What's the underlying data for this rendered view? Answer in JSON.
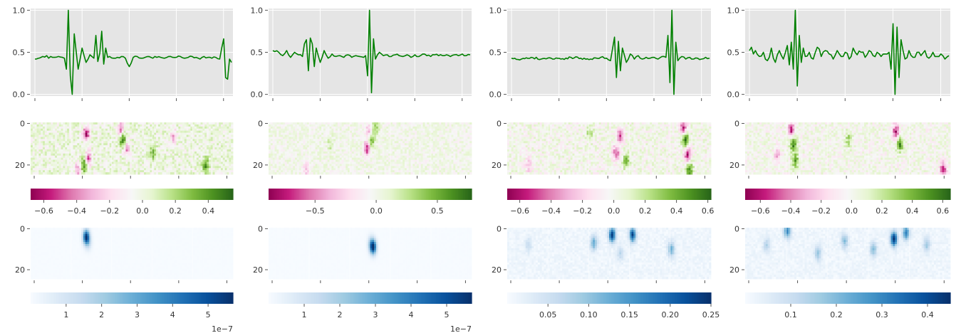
{
  "figure": {
    "line_color": "#008000",
    "plot_bg": "#e5e5e5",
    "grid_color": "#ffffff",
    "diverging_colormap": "PiYG",
    "sequential_colormap": "Blues"
  },
  "chart_data": [
    {
      "type": "line",
      "column": 0,
      "ylim": [
        -0.02,
        1.02
      ],
      "yticks": [
        "0.0",
        "0.5",
        "1.0"
      ],
      "x": [
        0,
        4,
        6,
        7,
        8,
        9,
        10,
        12,
        14,
        15,
        16,
        17,
        18,
        19,
        20,
        22,
        24,
        26,
        28,
        29,
        30,
        31,
        32,
        33,
        34,
        35,
        36,
        37,
        38,
        40,
        42,
        44,
        46,
        48,
        50,
        52,
        54,
        56,
        58,
        59,
        60,
        61,
        62,
        64,
        66,
        68,
        70,
        72,
        74,
        76,
        78,
        80,
        82,
        84,
        86,
        88,
        90,
        92,
        94,
        95,
        96,
        97,
        98,
        99,
        100
      ],
      "y": [
        0.42,
        0.45,
        0.46,
        0.43,
        0.45,
        0.44,
        0.44,
        0.45,
        0.44,
        0.43,
        0.3,
        1.0,
        0.22,
        0.0,
        0.72,
        0.3,
        0.55,
        0.38,
        0.47,
        0.45,
        0.43,
        0.7,
        0.39,
        0.49,
        0.75,
        0.36,
        0.55,
        0.44,
        0.45,
        0.43,
        0.44,
        0.45,
        0.43,
        0.33,
        0.44,
        0.45,
        0.43,
        0.44,
        0.45,
        0.44,
        0.43,
        0.45,
        0.44,
        0.44,
        0.43,
        0.45,
        0.44,
        0.44,
        0.45,
        0.43,
        0.44,
        0.45,
        0.44,
        0.42,
        0.45,
        0.44,
        0.43,
        0.44,
        0.42,
        0.55,
        0.66,
        0.2,
        0.18,
        0.42,
        0.38
      ]
    },
    {
      "type": "heatmap",
      "column": 0,
      "rows": 25,
      "yticks": [
        "0",
        "20"
      ],
      "colormap": "PiYG",
      "colorbar_range": [
        -0.68,
        0.55
      ],
      "colorbar_ticks": [
        "−0.6",
        "−0.4",
        "−0.2",
        "0.0",
        "0.2",
        "0.4"
      ],
      "features": [
        [
          27,
          5,
          -0.6
        ],
        [
          28,
          17,
          -0.5
        ],
        [
          26,
          20,
          0.5
        ],
        [
          44,
          3,
          -0.45
        ],
        [
          45,
          8,
          0.5
        ],
        [
          47,
          12,
          -0.4
        ],
        [
          60,
          14,
          0.35
        ],
        [
          86,
          20,
          0.45
        ],
        [
          23,
          22,
          -0.35
        ],
        [
          70,
          6,
          -0.3
        ]
      ]
    },
    {
      "type": "heatmap",
      "column": 0,
      "rows": 25,
      "yticks": [
        "0",
        "20"
      ],
      "colormap": "Blues",
      "colorbar_range": [
        0,
        5.7
      ],
      "colorbar_ticks": [
        "1",
        "2",
        "3",
        "4",
        "5"
      ],
      "colorbar_scale": "1e−7",
      "features": [
        [
          27,
          4,
          5.5
        ],
        [
          28,
          7,
          1.2
        ]
      ]
    },
    {
      "type": "line",
      "column": 1,
      "ylim": [
        -0.02,
        1.02
      ],
      "yticks": [
        "0.0",
        "0.5",
        "1.0"
      ],
      "x": [
        0,
        3,
        5,
        7,
        9,
        11,
        13,
        15,
        16,
        17,
        18,
        19,
        20,
        21,
        22,
        24,
        26,
        28,
        30,
        32,
        34,
        36,
        38,
        40,
        42,
        44,
        46,
        47,
        48,
        49,
        50,
        51,
        52,
        54,
        56,
        58,
        60,
        62,
        64,
        66,
        68,
        70,
        72,
        74,
        76,
        78,
        80,
        82,
        84,
        86,
        88,
        90,
        92,
        94,
        96,
        98,
        100
      ],
      "y": [
        0.52,
        0.5,
        0.46,
        0.52,
        0.44,
        0.5,
        0.47,
        0.45,
        0.6,
        0.65,
        0.28,
        0.67,
        0.6,
        0.33,
        0.55,
        0.38,
        0.52,
        0.43,
        0.48,
        0.45,
        0.46,
        0.44,
        0.47,
        0.44,
        0.46,
        0.45,
        0.44,
        0.46,
        0.22,
        1.0,
        0.02,
        0.66,
        0.42,
        0.5,
        0.46,
        0.47,
        0.45,
        0.47,
        0.46,
        0.45,
        0.47,
        0.44,
        0.47,
        0.45,
        0.48,
        0.46,
        0.45,
        0.47,
        0.46,
        0.46,
        0.47,
        0.45,
        0.47,
        0.46,
        0.48,
        0.46,
        0.47
      ]
    },
    {
      "type": "heatmap",
      "column": 1,
      "rows": 25,
      "yticks": [
        "0",
        "20"
      ],
      "colormap": "PiYG",
      "colorbar_range": [
        -0.88,
        0.78
      ],
      "colorbar_ticks": [
        "−0.5",
        "0.0",
        "0.5"
      ],
      "features": [
        [
          49,
          4,
          -0.45
        ],
        [
          48,
          12,
          -0.75
        ],
        [
          50,
          8,
          0.55
        ],
        [
          52,
          2,
          0.4
        ],
        [
          18,
          22,
          -0.3
        ],
        [
          30,
          10,
          0.2
        ]
      ]
    },
    {
      "type": "heatmap",
      "column": 1,
      "rows": 25,
      "yticks": [
        "0",
        "20"
      ],
      "colormap": "Blues",
      "colorbar_range": [
        0,
        5.7
      ],
      "colorbar_ticks": [
        "1",
        "2",
        "3",
        "4",
        "5"
      ],
      "colorbar_scale": "1e−7",
      "features": [
        [
          51,
          9,
          5.5
        ],
        [
          50,
          7,
          1.5
        ]
      ]
    },
    {
      "type": "line",
      "column": 2,
      "ylim": [
        -0.02,
        1.02
      ],
      "yticks": [
        "0.0",
        "0.5",
        "1.0"
      ],
      "x": [
        0,
        5,
        10,
        15,
        20,
        25,
        30,
        35,
        40,
        45,
        48,
        50,
        51,
        52,
        53,
        54,
        55,
        56,
        58,
        60,
        62,
        64,
        66,
        68,
        70,
        72,
        74,
        76,
        78,
        79,
        80,
        81,
        82,
        83,
        84,
        86,
        88,
        90,
        92,
        94,
        96,
        98,
        100
      ],
      "y": [
        0.43,
        0.42,
        0.44,
        0.42,
        0.43,
        0.42,
        0.44,
        0.43,
        0.42,
        0.44,
        0.43,
        0.4,
        0.54,
        0.68,
        0.2,
        0.63,
        0.28,
        0.55,
        0.38,
        0.48,
        0.42,
        0.46,
        0.42,
        0.44,
        0.43,
        0.44,
        0.42,
        0.45,
        0.44,
        0.7,
        0.14,
        1.0,
        0.0,
        0.62,
        0.4,
        0.45,
        0.42,
        0.44,
        0.42,
        0.43,
        0.42,
        0.44,
        0.43
      ]
    },
    {
      "type": "heatmap",
      "column": 2,
      "rows": 25,
      "yticks": [
        "0",
        "20"
      ],
      "colormap": "PiYG",
      "colorbar_range": [
        -0.68,
        0.62
      ],
      "colorbar_ticks": [
        "−0.6",
        "−0.4",
        "−0.2",
        "0.0",
        "0.2",
        "0.4",
        "0.6"
      ],
      "features": [
        [
          55,
          6,
          -0.5
        ],
        [
          53,
          14,
          -0.45
        ],
        [
          58,
          18,
          0.4
        ],
        [
          86,
          2,
          -0.55
        ],
        [
          87,
          8,
          0.6
        ],
        [
          88,
          15,
          -0.6
        ],
        [
          89,
          22,
          0.5
        ],
        [
          10,
          20,
          -0.3
        ],
        [
          40,
          5,
          0.25
        ]
      ]
    },
    {
      "type": "heatmap",
      "column": 2,
      "rows": 25,
      "yticks": [
        "0",
        "20"
      ],
      "colormap": "Blues",
      "colorbar_range": [
        0,
        0.25
      ],
      "colorbar_ticks": [
        "0.05",
        "0.10",
        "0.15",
        "0.20",
        "0.25"
      ],
      "features": [
        [
          51,
          3,
          0.23
        ],
        [
          61,
          3,
          0.22
        ],
        [
          42,
          7,
          0.12
        ],
        [
          80,
          10,
          0.12
        ],
        [
          55,
          12,
          0.06
        ],
        [
          10,
          8,
          0.05
        ]
      ]
    },
    {
      "type": "line",
      "column": 3,
      "ylim": [
        -0.02,
        1.02
      ],
      "yticks": [
        "0.0",
        "0.5",
        "1.0"
      ],
      "x": [
        0,
        1,
        2,
        3,
        5,
        7,
        9,
        11,
        13,
        15,
        17,
        19,
        20,
        21,
        22,
        23,
        24,
        25,
        26,
        27,
        28,
        30,
        32,
        34,
        36,
        38,
        40,
        42,
        44,
        46,
        48,
        50,
        52,
        54,
        56,
        58,
        60,
        62,
        64,
        66,
        68,
        70,
        71,
        72,
        73,
        74,
        75,
        76,
        78,
        80,
        82,
        84,
        86,
        88,
        90,
        92,
        94,
        96,
        98,
        100
      ],
      "y": [
        0.52,
        0.56,
        0.48,
        0.52,
        0.45,
        0.5,
        0.4,
        0.55,
        0.38,
        0.52,
        0.42,
        0.58,
        0.35,
        0.62,
        0.3,
        1.0,
        0.1,
        0.7,
        0.38,
        0.55,
        0.45,
        0.5,
        0.42,
        0.56,
        0.45,
        0.52,
        0.48,
        0.42,
        0.52,
        0.45,
        0.5,
        0.42,
        0.55,
        0.47,
        0.5,
        0.44,
        0.52,
        0.46,
        0.5,
        0.45,
        0.48,
        0.5,
        0.3,
        0.84,
        0.0,
        0.8,
        0.2,
        0.65,
        0.42,
        0.52,
        0.44,
        0.5,
        0.46,
        0.52,
        0.43,
        0.5,
        0.45,
        0.48,
        0.42,
        0.46
      ]
    },
    {
      "type": "heatmap",
      "column": 3,
      "rows": 25,
      "yticks": [
        "0",
        "20"
      ],
      "colormap": "PiYG",
      "colorbar_range": [
        -0.7,
        0.65
      ],
      "colorbar_ticks": [
        "−0.6",
        "−0.4",
        "−0.2",
        "0.0",
        "0.2",
        "0.4",
        "0.6"
      ],
      "features": [
        [
          22,
          3,
          -0.6
        ],
        [
          23,
          10,
          0.55
        ],
        [
          24,
          18,
          0.45
        ],
        [
          73,
          4,
          -0.6
        ],
        [
          75,
          10,
          0.5
        ],
        [
          96,
          22,
          -0.55
        ],
        [
          50,
          8,
          0.3
        ],
        [
          15,
          15,
          -0.3
        ]
      ]
    },
    {
      "type": "heatmap",
      "column": 3,
      "rows": 25,
      "yticks": [
        "0",
        "20"
      ],
      "colormap": "Blues",
      "colorbar_range": [
        0,
        0.45
      ],
      "colorbar_ticks": [
        "0.1",
        "0.2",
        "0.3",
        "0.4"
      ],
      "features": [
        [
          72,
          5,
          0.44
        ],
        [
          20,
          1,
          0.3
        ],
        [
          78,
          2,
          0.3
        ],
        [
          48,
          6,
          0.18
        ],
        [
          35,
          12,
          0.16
        ],
        [
          62,
          10,
          0.18
        ],
        [
          88,
          8,
          0.15
        ],
        [
          10,
          8,
          0.12
        ]
      ]
    }
  ]
}
